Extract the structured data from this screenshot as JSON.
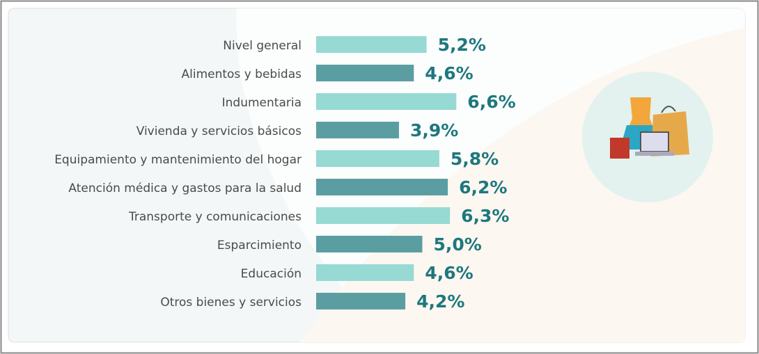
{
  "chart_data": {
    "type": "bar",
    "orientation": "horizontal",
    "categories": [
      "Nivel general",
      "Alimentos y bebidas",
      "Indumentaria",
      "Vivienda y servicios básicos",
      "Equipamiento y mantenimiento del hogar",
      "Atención médica y gastos para la salud",
      "Transporte y comunicaciones",
      "Esparcimiento",
      "Educación",
      "Otros bienes y servicios"
    ],
    "values": [
      5.2,
      4.6,
      6.6,
      3.9,
      5.8,
      6.2,
      6.3,
      5.0,
      4.6,
      4.2
    ],
    "value_labels": [
      "5,2%",
      "4,6%",
      "6,6%",
      "3,9%",
      "5,8%",
      "6,2%",
      "6,3%",
      "5,0%",
      "4,6%",
      "4,2%"
    ],
    "colors": [
      "#97d9d3",
      "#5b9ea2",
      "#97d9d3",
      "#5b9ea2",
      "#97d9d3",
      "#5b9ea2",
      "#97d9d3",
      "#5b9ea2",
      "#97d9d3",
      "#5b9ea2"
    ],
    "label_color": "#1d787e"
  }
}
